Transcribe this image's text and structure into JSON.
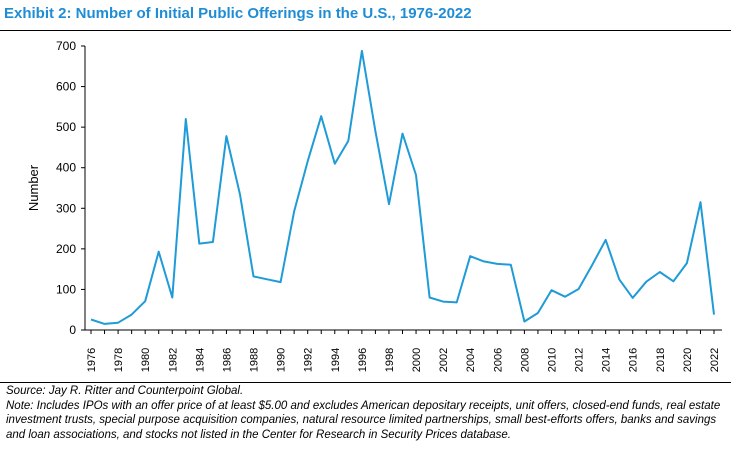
{
  "title": "Exhibit 2: Number of Initial Public Offerings in the U.S., 1976-2022",
  "source": "Source: Jay R. Ritter and Counterpoint Global.",
  "note": "Note: Includes IPOs with an offer price of at least $5.00 and excludes American depositary receipts, unit offers, closed-end funds, real estate investment trusts, special purpose acquisition companies, natural resource limited partnerships, small best-efforts offers, banks and savings and loan associations, and stocks not listed in the Center for Research in Security Prices database.",
  "colors": {
    "title": "#1f8dd6",
    "line": "#1f9bd7",
    "axis": "#000000"
  },
  "chart_data": {
    "type": "line",
    "title": "Number of Initial Public Offerings in the U.S., 1976-2022",
    "xlabel": "",
    "ylabel": "Number",
    "ylim": [
      0,
      700
    ],
    "yticks": [
      0,
      100,
      200,
      300,
      400,
      500,
      600,
      700
    ],
    "xticks": [
      1976,
      1978,
      1980,
      1982,
      1984,
      1986,
      1988,
      1990,
      1992,
      1994,
      1996,
      1998,
      2000,
      2002,
      2004,
      2006,
      2008,
      2010,
      2012,
      2014,
      2016,
      2018,
      2020,
      2022
    ],
    "grid": false,
    "series": [
      {
        "name": "IPOs",
        "x": [
          1976,
          1977,
          1978,
          1979,
          1980,
          1981,
          1982,
          1983,
          1984,
          1985,
          1986,
          1987,
          1988,
          1989,
          1990,
          1991,
          1992,
          1993,
          1994,
          1995,
          1996,
          1997,
          1998,
          1999,
          2000,
          2001,
          2002,
          2003,
          2004,
          2005,
          2006,
          2007,
          2008,
          2009,
          2010,
          2011,
          2012,
          2013,
          2014,
          2015,
          2016,
          2017,
          2018,
          2019,
          2020,
          2021,
          2022
        ],
        "values": [
          26,
          15,
          18,
          38,
          71,
          193,
          80,
          520,
          213,
          217,
          478,
          334,
          132,
          125,
          118,
          293,
          416,
          527,
          410,
          466,
          688,
          490,
          310,
          484,
          382,
          80,
          70,
          68,
          182,
          169,
          163,
          161,
          21,
          42,
          98,
          82,
          101,
          160,
          222,
          125,
          79,
          119,
          143,
          120,
          165,
          315,
          38
        ]
      }
    ]
  }
}
